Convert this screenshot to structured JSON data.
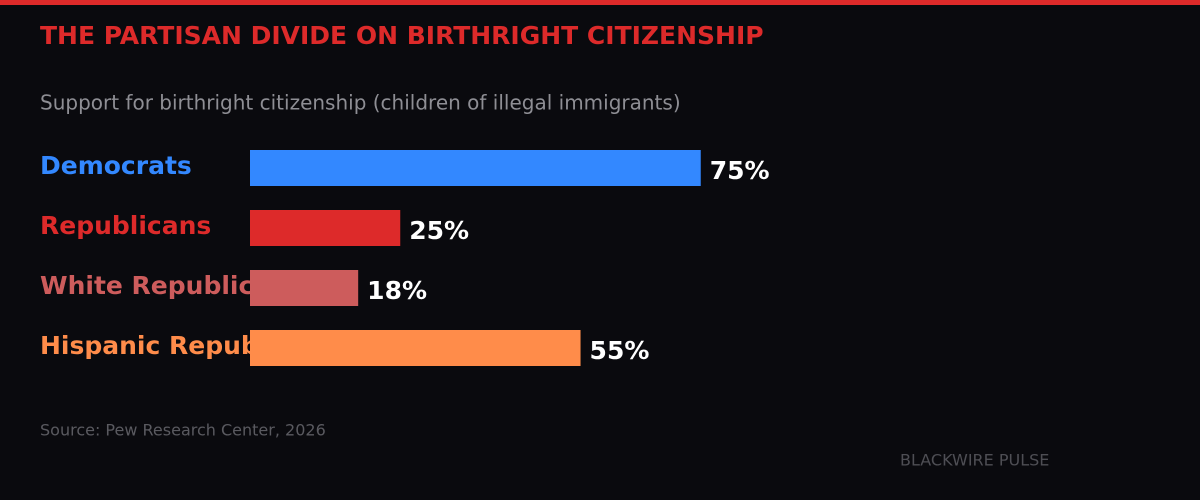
{
  "chart_data": {
    "type": "bar",
    "orientation": "horizontal",
    "title": "THE PARTISAN DIVIDE ON BIRTHRIGHT CITIZENSHIP",
    "subtitle": "Support for birthright citizenship (children of illegal immigrants)",
    "categories": [
      "Democrats",
      "Republicans",
      "White Republicans",
      "Hispanic Republicans"
    ],
    "values": [
      75,
      25,
      18,
      55
    ],
    "value_labels": [
      "75%",
      "25%",
      "18%",
      "55%"
    ],
    "colors": [
      "#3388ff",
      "#dd2a2a",
      "#cd5c5c",
      "#ff8c4a"
    ],
    "xlim": [
      0,
      100
    ],
    "source": "Source: Pew Research Center, 2026",
    "brand": "BLACKWIRE PULSE"
  }
}
